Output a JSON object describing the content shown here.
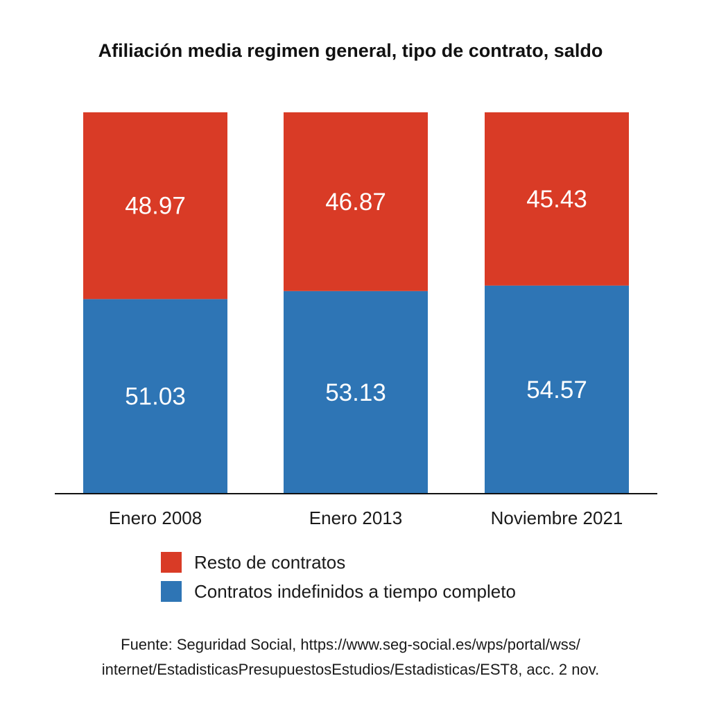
{
  "title": "Afiliación media regimen general, tipo de contrato, saldo",
  "chart_data": {
    "type": "bar",
    "stacked": true,
    "categories": [
      "Enero 2008",
      "Enero 2013",
      "Noviembre 2021"
    ],
    "series": [
      {
        "name": "Contratos indefinidos a tiempo completo",
        "values": [
          51.03,
          53.13,
          54.57
        ],
        "color": "#2e75b5",
        "value_labels": [
          "51.03",
          "53.13",
          "54.57"
        ]
      },
      {
        "name": "Resto de contratos",
        "values": [
          48.97,
          46.87,
          45.43
        ],
        "color": "#d93b26",
        "value_labels": [
          "48.97",
          "46.87",
          "45.43"
        ]
      }
    ],
    "ylim": [
      0,
      100
    ],
    "grid": false,
    "legend_position": "bottom"
  },
  "legend": [
    {
      "label": "Resto de contratos",
      "color": "#d93b26"
    },
    {
      "label": "Contratos indefinidos a tiempo completo",
      "color": "#2e75b5"
    }
  ],
  "source": {
    "line1": "Fuente: Seguridad Social, https://www.seg-social.es/wps/portal/wss/",
    "line2": "internet/EstadisticasPresupuestosEstudios/Estadisticas/EST8, acc. 2 nov."
  }
}
